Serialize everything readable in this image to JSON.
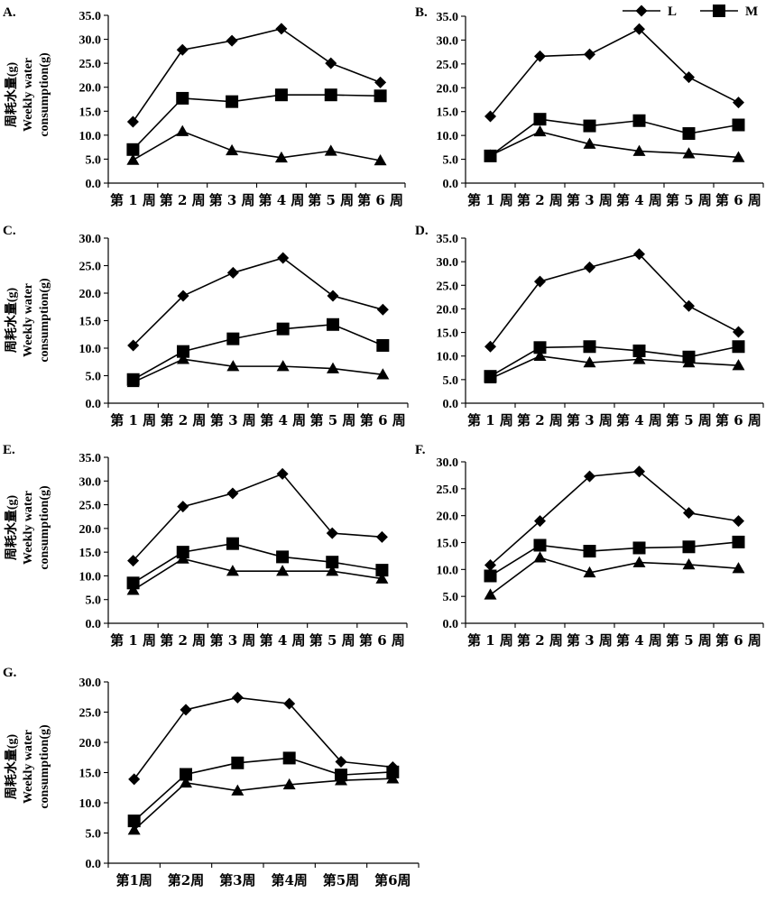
{
  "legend": {
    "items": [
      {
        "label": "L",
        "marker": "diamond"
      },
      {
        "label": "M",
        "marker": "square"
      }
    ]
  },
  "y_title": {
    "cn": "周耗水量(g)",
    "en1": "Weekly water",
    "en2": "consumption(g)"
  },
  "categories": [
    "第1周",
    "第2周",
    "第3周",
    "第4周",
    "第5周",
    "第6周"
  ],
  "chart_data": [
    {
      "panel": "A.",
      "type": "line",
      "ylim": [
        0,
        35
      ],
      "ystep": 5,
      "ytick_labels": [
        "0.0",
        "5.0",
        "10.0",
        "15.0",
        "20.0",
        "25.0",
        "30.0",
        "35.0"
      ],
      "categories": [
        "第1周",
        "第2周",
        "第3周",
        "第4周",
        "第5周",
        "第6周"
      ],
      "x_tick_labels": [
        "第 1 周",
        "第 2 周",
        "第 3 周",
        "第 4 周",
        "第 5 周",
        "第 6 周"
      ],
      "series": [
        {
          "name": "L",
          "marker": "diamond",
          "values": [
            12.8,
            27.8,
            29.7,
            32.2,
            25.0,
            21.0
          ]
        },
        {
          "name": "M",
          "marker": "square",
          "values": [
            7.0,
            17.7,
            17.0,
            18.4,
            18.4,
            18.2
          ]
        },
        {
          "marker": "triangle",
          "values": [
            4.8,
            10.8,
            6.8,
            5.3,
            6.7,
            4.7
          ]
        }
      ]
    },
    {
      "panel": "B.",
      "type": "line",
      "ylim": [
        0,
        35
      ],
      "ystep": 5,
      "ytick_labels": [
        "0.0",
        "5.0",
        "10.0",
        "15.0",
        "20.0",
        "25.0",
        "30.0",
        "35.0"
      ],
      "categories": [
        "第1周",
        "第2周",
        "第3周",
        "第4周",
        "第5周",
        "第6周"
      ],
      "x_tick_labels": [
        "第 1 周",
        "第 2 周",
        "第 3 周",
        "第 4 周",
        "第 5 周",
        "第 6 周"
      ],
      "series": [
        {
          "name": "L",
          "marker": "diamond",
          "values": [
            14.0,
            26.6,
            27.0,
            32.3,
            22.2,
            16.9
          ]
        },
        {
          "name": "M",
          "marker": "square",
          "values": [
            5.7,
            13.4,
            12.0,
            13.1,
            10.4,
            12.2
          ]
        },
        {
          "marker": "triangle",
          "values": [
            5.8,
            10.8,
            8.2,
            6.7,
            6.2,
            5.4
          ]
        }
      ]
    },
    {
      "panel": "C.",
      "type": "line",
      "ylim": [
        0,
        30
      ],
      "ystep": 5,
      "ytick_labels": [
        "0.0",
        "5.0",
        "10.0",
        "15.0",
        "20.0",
        "25.0",
        "30.0"
      ],
      "categories": [
        "第1周",
        "第2周",
        "第3周",
        "第4周",
        "第5周",
        "第6周"
      ],
      "x_tick_labels": [
        "第 1 周",
        "第 2 周",
        "第 3 周",
        "第 4 周",
        "第 5 周",
        "第 6 周"
      ],
      "series": [
        {
          "name": "L",
          "marker": "diamond",
          "values": [
            10.5,
            19.5,
            23.7,
            26.4,
            19.5,
            17.0
          ]
        },
        {
          "name": "M",
          "marker": "square",
          "values": [
            4.3,
            9.4,
            11.7,
            13.5,
            14.3,
            10.5
          ]
        },
        {
          "marker": "triangle",
          "values": [
            3.8,
            8.0,
            6.7,
            6.7,
            6.3,
            5.2
          ]
        }
      ]
    },
    {
      "panel": "D.",
      "type": "line",
      "ylim": [
        0,
        35
      ],
      "ystep": 5,
      "ytick_labels": [
        "0.0",
        "5.0",
        "10.0",
        "15.0",
        "20.0",
        "25.0",
        "30.0",
        "35.0"
      ],
      "categories": [
        "第1周",
        "第2周",
        "第3周",
        "第4周",
        "第5周",
        "第6周"
      ],
      "x_tick_labels": [
        "第 1 周",
        "第 2 周",
        "第 3 周",
        "第 4 周",
        "第 5 周",
        "第 6 周"
      ],
      "series": [
        {
          "name": "L",
          "marker": "diamond",
          "values": [
            12.0,
            25.8,
            28.8,
            31.6,
            20.6,
            15.1
          ]
        },
        {
          "name": "M",
          "marker": "square",
          "values": [
            5.7,
            11.8,
            12.0,
            11.1,
            9.8,
            12.0
          ]
        },
        {
          "marker": "triangle",
          "values": [
            5.2,
            10.0,
            8.6,
            9.3,
            8.6,
            8.0
          ]
        }
      ]
    },
    {
      "panel": "E.",
      "type": "line",
      "ylim": [
        0,
        35
      ],
      "ystep": 5,
      "ytick_labels": [
        "0.0",
        "5.0",
        "10.0",
        "15.0",
        "20.0",
        "25.0",
        "30.0",
        "35.0"
      ],
      "categories": [
        "第1周",
        "第2周",
        "第3周",
        "第4周",
        "第5周",
        "第6周"
      ],
      "x_tick_labels": [
        "第 1 周",
        "第 2 周",
        "第 3 周",
        "第 4 周",
        "第 5 周",
        "第 6 周"
      ],
      "series": [
        {
          "name": "L",
          "marker": "diamond",
          "values": [
            13.2,
            24.6,
            27.4,
            31.5,
            19.0,
            18.2
          ]
        },
        {
          "name": "M",
          "marker": "square",
          "values": [
            8.5,
            15.0,
            16.8,
            14.0,
            12.9,
            11.2
          ]
        },
        {
          "marker": "triangle",
          "values": [
            7.0,
            13.6,
            11.0,
            11.0,
            11.0,
            9.4
          ]
        }
      ]
    },
    {
      "panel": "F.",
      "type": "line",
      "ylim": [
        0,
        30
      ],
      "ystep": 5,
      "ytick_labels": [
        "0.0",
        "5.0",
        "10.0",
        "15.0",
        "20.0",
        "25.0",
        "30.0"
      ],
      "categories": [
        "第1周",
        "第2周",
        "第3周",
        "第4周",
        "第5周",
        "第6周"
      ],
      "x_tick_labels": [
        "第 1 周",
        "第 2 周",
        "第 3 周",
        "第 4 周",
        "第 5 周",
        "第 6 周"
      ],
      "series": [
        {
          "name": "L",
          "marker": "diamond",
          "values": [
            10.8,
            19.0,
            27.3,
            28.2,
            20.5,
            19.0
          ]
        },
        {
          "name": "M",
          "marker": "square",
          "values": [
            8.8,
            14.5,
            13.4,
            14.0,
            14.2,
            15.1
          ]
        },
        {
          "marker": "triangle",
          "values": [
            5.3,
            12.2,
            9.4,
            11.3,
            10.9,
            10.2
          ]
        }
      ]
    },
    {
      "panel": "G.",
      "type": "line",
      "ylim": [
        0,
        30
      ],
      "ystep": 5,
      "ytick_labels": [
        "0.0",
        "5.0",
        "10.0",
        "15.0",
        "20.0",
        "25.0",
        "30.0"
      ],
      "categories": [
        "第1周",
        "第2周",
        "第3周",
        "第4周",
        "第5周",
        "第6周"
      ],
      "x_tick_labels": [
        "第1周",
        "第2周",
        "第3周",
        "第4周",
        "第5周",
        "第6周"
      ],
      "series": [
        {
          "name": "L",
          "marker": "diamond",
          "values": [
            13.9,
            25.4,
            27.4,
            26.4,
            16.8,
            15.9
          ]
        },
        {
          "name": "M",
          "marker": "square",
          "values": [
            7.0,
            14.7,
            16.6,
            17.4,
            14.6,
            15.1
          ]
        },
        {
          "marker": "triangle",
          "values": [
            5.5,
            13.3,
            12.0,
            13.0,
            13.7,
            14.0
          ]
        }
      ]
    }
  ]
}
